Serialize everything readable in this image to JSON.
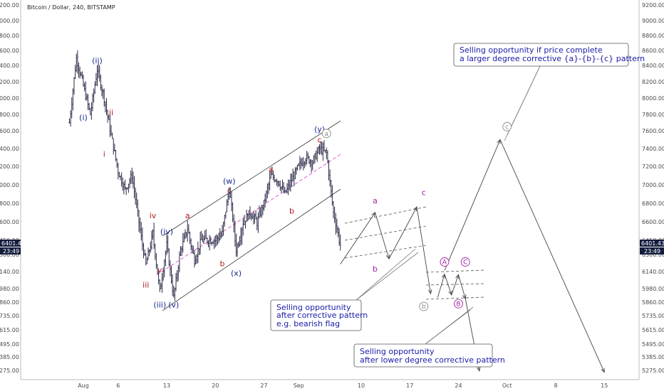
{
  "title": "Bitcoin / Dollar, 240, BITSTAMP",
  "current_price": "6401.43",
  "countdown": "23:49",
  "colors": {
    "navy": "#1a2a8c",
    "red": "#b3191e",
    "magenta": "#a020a0",
    "gray": "#8a8a8a",
    "candle": "#2b2b4a",
    "channel_mid": "#e05fd0",
    "tag_bg": "#141d3d",
    "note_text": "#1a1aa8"
  },
  "chart_data": {
    "type": "ohlc",
    "title": "Bitcoin / Dollar, 240, BITSTAMP",
    "ylim": [
      5190,
      9250
    ],
    "y_ticks": [
      "9200.00",
      "9000.00",
      "8800.00",
      "8600.00",
      "8400.00",
      "8200.00",
      "8000.00",
      "7800.00",
      "7600.00",
      "7400.00",
      "7200.00",
      "7000.00",
      "6800.00",
      "6600.00",
      "6450.00",
      "6300.00",
      "6140.00",
      "5980.00",
      "5860.00",
      "5735.00",
      "5615.00",
      "5495.00",
      "5385.00",
      "5275.00"
    ],
    "x_ticks": [
      "Aug",
      "6",
      "13",
      "20",
      "27",
      "Sep",
      "10",
      "17",
      "24",
      "Oct",
      "8",
      "15"
    ],
    "price_path": [
      [
        "Jul 30",
        7700
      ],
      [
        "Jul 31",
        8500
      ],
      [
        "Aug 1",
        8150
      ],
      [
        "Aug 2",
        7800
      ],
      [
        "Aug 3",
        8350
      ],
      [
        "Aug 4",
        8000
      ],
      [
        "Aug 5",
        7550
      ],
      [
        "Aug 6",
        7150
      ],
      [
        "Aug 7",
        6950
      ],
      [
        "Aug 8",
        7100
      ],
      [
        "Aug 9",
        6600
      ],
      [
        "Aug 10",
        6200
      ],
      [
        "Aug 11",
        6500
      ],
      [
        "Aug 12",
        5950
      ],
      [
        "Aug 13",
        6400
      ],
      [
        "Aug 14",
        5900
      ],
      [
        "Aug 15",
        6350
      ],
      [
        "Aug 16",
        6550
      ],
      [
        "Aug 17",
        6250
      ],
      [
        "Aug 18",
        6450
      ],
      [
        "Aug 20",
        6450
      ],
      [
        "Aug 21",
        6500
      ],
      [
        "Aug 22",
        6950
      ],
      [
        "Aug 23",
        6350
      ],
      [
        "Aug 24",
        6600
      ],
      [
        "Aug 25",
        6700
      ],
      [
        "Aug 26",
        6600
      ],
      [
        "Aug 27",
        6800
      ],
      [
        "Aug 28",
        7100
      ],
      [
        "Aug 29",
        7050
      ],
      [
        "Aug 30",
        6900
      ],
      [
        "Aug 31",
        7050
      ],
      [
        "Sep 1",
        7200
      ],
      [
        "Sep 2",
        7300
      ],
      [
        "Sep 3",
        7250
      ],
      [
        "Sep 4",
        7400
      ],
      [
        "Sep 5",
        7350
      ],
      [
        "Sep 6",
        6700
      ],
      [
        "Sep 7",
        6401
      ]
    ],
    "wave_labels": [
      {
        "text": "(i)",
        "at": [
          "Aug 1",
          7730
        ],
        "color": "navy"
      },
      {
        "text": "(ii)",
        "at": [
          "Aug 3",
          8430
        ],
        "color": "navy"
      },
      {
        "text": "i",
        "at": [
          "Aug 4",
          7310
        ],
        "color": "red"
      },
      {
        "text": "ii",
        "at": [
          "Aug 5",
          7790
        ],
        "color": "red"
      },
      {
        "text": "iii",
        "at": [
          "Aug 10",
          5990
        ],
        "color": "red"
      },
      {
        "text": "iv",
        "at": [
          "Aug 11",
          6640
        ],
        "color": "red"
      },
      {
        "text": "v",
        "at": [
          "Aug 12",
          6130
        ],
        "color": "red"
      },
      {
        "text": "(iii)",
        "at": [
          "Aug 12",
          5810
        ],
        "color": "navy"
      },
      {
        "text": "(iv)",
        "at": [
          "Aug 13",
          6500
        ],
        "color": "navy"
      },
      {
        "text": "(v)",
        "at": [
          "Aug 14",
          5810
        ],
        "color": "navy"
      },
      {
        "text": "a",
        "at": [
          "Aug 16",
          6640
        ],
        "color": "red"
      },
      {
        "text": "(w)",
        "at": [
          "Aug 22",
          7010
        ],
        "color": "navy"
      },
      {
        "text": "c",
        "at": [
          "Aug 22",
          6910
        ],
        "color": "red"
      },
      {
        "text": "b",
        "at": [
          "Aug 21",
          6190
        ],
        "color": "red"
      },
      {
        "text": "(x)",
        "at": [
          "Aug 23",
          6100
        ],
        "color": "navy"
      },
      {
        "text": "a",
        "at": [
          "Aug 28",
          7140
        ],
        "color": "red"
      },
      {
        "text": "b",
        "at": [
          "Aug 31",
          6690
        ],
        "color": "red"
      },
      {
        "text": "(y)",
        "at": [
          "Sep 4",
          7590
        ],
        "color": "navy"
      },
      {
        "text": "c",
        "at": [
          "Sep 4",
          7470
        ],
        "color": "red"
      },
      {
        "text": "a",
        "at": [
          "Sep 12",
          6800
        ],
        "color": "magenta"
      },
      {
        "text": "b",
        "at": [
          "Sep 12",
          6140
        ],
        "color": "magenta"
      },
      {
        "text": "c",
        "at": [
          "Sep 19",
          6890
        ],
        "color": "magenta"
      }
    ],
    "circled_labels": [
      {
        "text": "a",
        "at": [
          "Sep 5",
          7570
        ],
        "color": "gray"
      },
      {
        "text": "b",
        "at": [
          "Sep 19",
          5820
        ],
        "color": "gray"
      },
      {
        "text": "c",
        "at": [
          "Oct 1",
          7650
        ],
        "color": "gray"
      },
      {
        "text": "A",
        "at": [
          "Sep 22",
          6230
        ],
        "color": "magenta"
      },
      {
        "text": "B",
        "at": [
          "Sep 24",
          5845
        ],
        "color": "magenta"
      },
      {
        "text": "C",
        "at": [
          "Sep 25",
          6230
        ],
        "color": "magenta"
      }
    ],
    "projected_paths": [
      [
        [
          "Sep 7",
          6210
        ],
        [
          "Sep 12",
          6700
        ],
        [
          "Sep 14",
          6260
        ],
        [
          "Sep 18",
          6760
        ],
        [
          "Sep 20",
          5935
        ]
      ],
      [
        [
          "Sep 21",
          5900
        ],
        [
          "Sep 22",
          6115
        ],
        [
          "Sep 23",
          5925
        ],
        [
          "Sep 24",
          6110
        ],
        [
          "Sep 25",
          5890
        ],
        [
          "Sep 27",
          5270
        ]
      ],
      [
        [
          "Sep 22",
          6150
        ],
        [
          "Sep 30",
          7500
        ],
        [
          "Oct 15",
          5260
        ]
      ]
    ]
  },
  "annotations": {
    "note_top": {
      "line1": "Selling opportunity if price complete",
      "line2": "a larger degree corrective {a}-{b}-{c} pattern"
    },
    "note_mid": {
      "line1": "Selling opportunity",
      "line2": "after corrective pattern",
      "line3": "e.g. bearish flag"
    },
    "note_bottom": {
      "line1": "Selling opportunity",
      "line2": "after lower degree corrective pattern"
    }
  }
}
